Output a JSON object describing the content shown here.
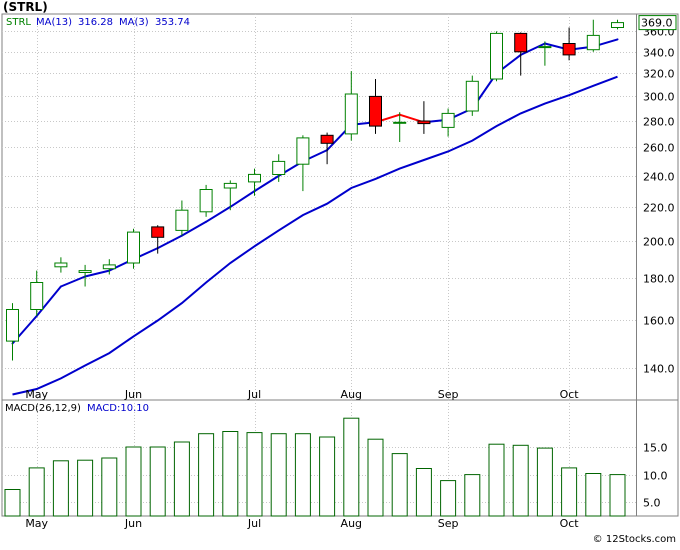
{
  "chart_data": {
    "type": "candlestick",
    "title": "(STRL)",
    "watermark": "© 12Stocks.com",
    "last_price_label": "369.0",
    "x_labels": [
      "May",
      "Jun",
      "Jul",
      "Aug",
      "Sep",
      "Oct"
    ],
    "x_label_index": [
      1,
      5,
      10,
      14,
      18,
      23
    ],
    "price_panel": {
      "y_ticks": [
        140,
        160,
        180,
        200,
        220,
        240,
        260,
        280,
        300,
        320,
        340,
        360
      ],
      "y_tick_labels": [
        "140.0",
        "160.0",
        "180.0",
        "200.0",
        "220.0",
        "240.0",
        "260.0",
        "280.0",
        "300.0",
        "320.0",
        "340.0",
        "360.0"
      ],
      "ylim": [
        128,
        378
      ],
      "scale": "log",
      "grid": true,
      "legend": [
        {
          "label": "STRL",
          "color": "#008000"
        },
        {
          "label": "MA(13)",
          "value": "316.28",
          "color": "#0000cc"
        },
        {
          "label": "MA(3)",
          "value": "353.74",
          "color": "#0000cc"
        }
      ],
      "candles": [
        {
          "o": 151,
          "h": 168,
          "l": 143,
          "c": 165,
          "up": true
        },
        {
          "o": 165,
          "h": 184,
          "l": 162,
          "c": 178,
          "up": true
        },
        {
          "o": 186,
          "h": 191,
          "l": 183,
          "c": 188,
          "up": true
        },
        {
          "o": 183,
          "h": 187,
          "l": 176,
          "c": 184,
          "up": true
        },
        {
          "o": 185,
          "h": 190,
          "l": 182,
          "c": 187,
          "up": true
        },
        {
          "o": 188,
          "h": 207,
          "l": 185,
          "c": 205,
          "up": true
        },
        {
          "o": 208,
          "h": 209,
          "l": 193,
          "c": 202,
          "up": false
        },
        {
          "o": 206,
          "h": 224,
          "l": 203,
          "c": 218,
          "up": true
        },
        {
          "o": 217,
          "h": 234,
          "l": 214,
          "c": 231,
          "up": true
        },
        {
          "o": 232,
          "h": 237,
          "l": 218,
          "c": 235,
          "up": true
        },
        {
          "o": 236,
          "h": 245,
          "l": 227,
          "c": 241,
          "up": true
        },
        {
          "o": 241,
          "h": 255,
          "l": 236,
          "c": 250,
          "up": true
        },
        {
          "o": 248,
          "h": 269,
          "l": 230,
          "c": 267,
          "up": true
        },
        {
          "o": 269,
          "h": 271,
          "l": 248,
          "c": 263,
          "up": false
        },
        {
          "o": 270,
          "h": 322,
          "l": 265,
          "c": 302,
          "up": true
        },
        {
          "o": 300,
          "h": 315,
          "l": 270,
          "c": 276,
          "up": false
        },
        {
          "o": 279,
          "h": 287,
          "l": 264,
          "c": 279,
          "up": true
        },
        {
          "o": 280,
          "h": 296,
          "l": 270,
          "c": 278,
          "up": false
        },
        {
          "o": 275,
          "h": 290,
          "l": 268,
          "c": 286,
          "up": true
        },
        {
          "o": 288,
          "h": 318,
          "l": 284,
          "c": 313,
          "up": true
        },
        {
          "o": 315,
          "h": 360,
          "l": 313,
          "c": 358,
          "up": true
        },
        {
          "o": 358,
          "h": 359,
          "l": 318,
          "c": 340,
          "up": false
        },
        {
          "o": 345,
          "h": 350,
          "l": 327,
          "c": 344,
          "up": true
        },
        {
          "o": 348,
          "h": 364,
          "l": 332,
          "c": 337,
          "up": false
        },
        {
          "o": 342,
          "h": 372,
          "l": 340,
          "c": 356,
          "up": true
        },
        {
          "o": 364,
          "h": 372,
          "l": 362,
          "c": 369,
          "up": true
        }
      ],
      "ma_fast": [
        150,
        162,
        176,
        181,
        184,
        190,
        196,
        203,
        211,
        220,
        230,
        240,
        250,
        258,
        277,
        279,
        285,
        279,
        281,
        290,
        320,
        337,
        348,
        342,
        345,
        352
      ],
      "ma_slow": [
        130,
        132,
        136,
        141,
        146,
        153,
        160,
        168,
        178,
        188,
        197,
        206,
        215,
        222,
        232,
        238,
        245,
        251,
        257,
        265,
        276,
        286,
        294,
        301,
        309,
        317
      ],
      "ma_fast_red_segments": [
        [
          15,
          17
        ]
      ]
    },
    "macd_panel": {
      "legend": [
        {
          "label": "MACD(26,12,9)",
          "color": "#000000"
        },
        {
          "label": "MACD:10.10",
          "color": "#0000cc"
        }
      ],
      "y_ticks": [
        5,
        10,
        15
      ],
      "y_tick_labels": [
        "5.0",
        "10.0",
        "15.0"
      ],
      "ylim": [
        2.5,
        23.5
      ],
      "grid": true,
      "values": [
        7.3,
        11.2,
        12.5,
        12.6,
        13,
        15,
        15,
        15.9,
        17.4,
        17.8,
        17.6,
        17.4,
        17.4,
        16.8,
        20.2,
        16.4,
        13.8,
        11.1,
        8.9,
        10,
        15.5,
        15.3,
        14.8,
        11.2,
        10.2,
        10
      ]
    }
  }
}
